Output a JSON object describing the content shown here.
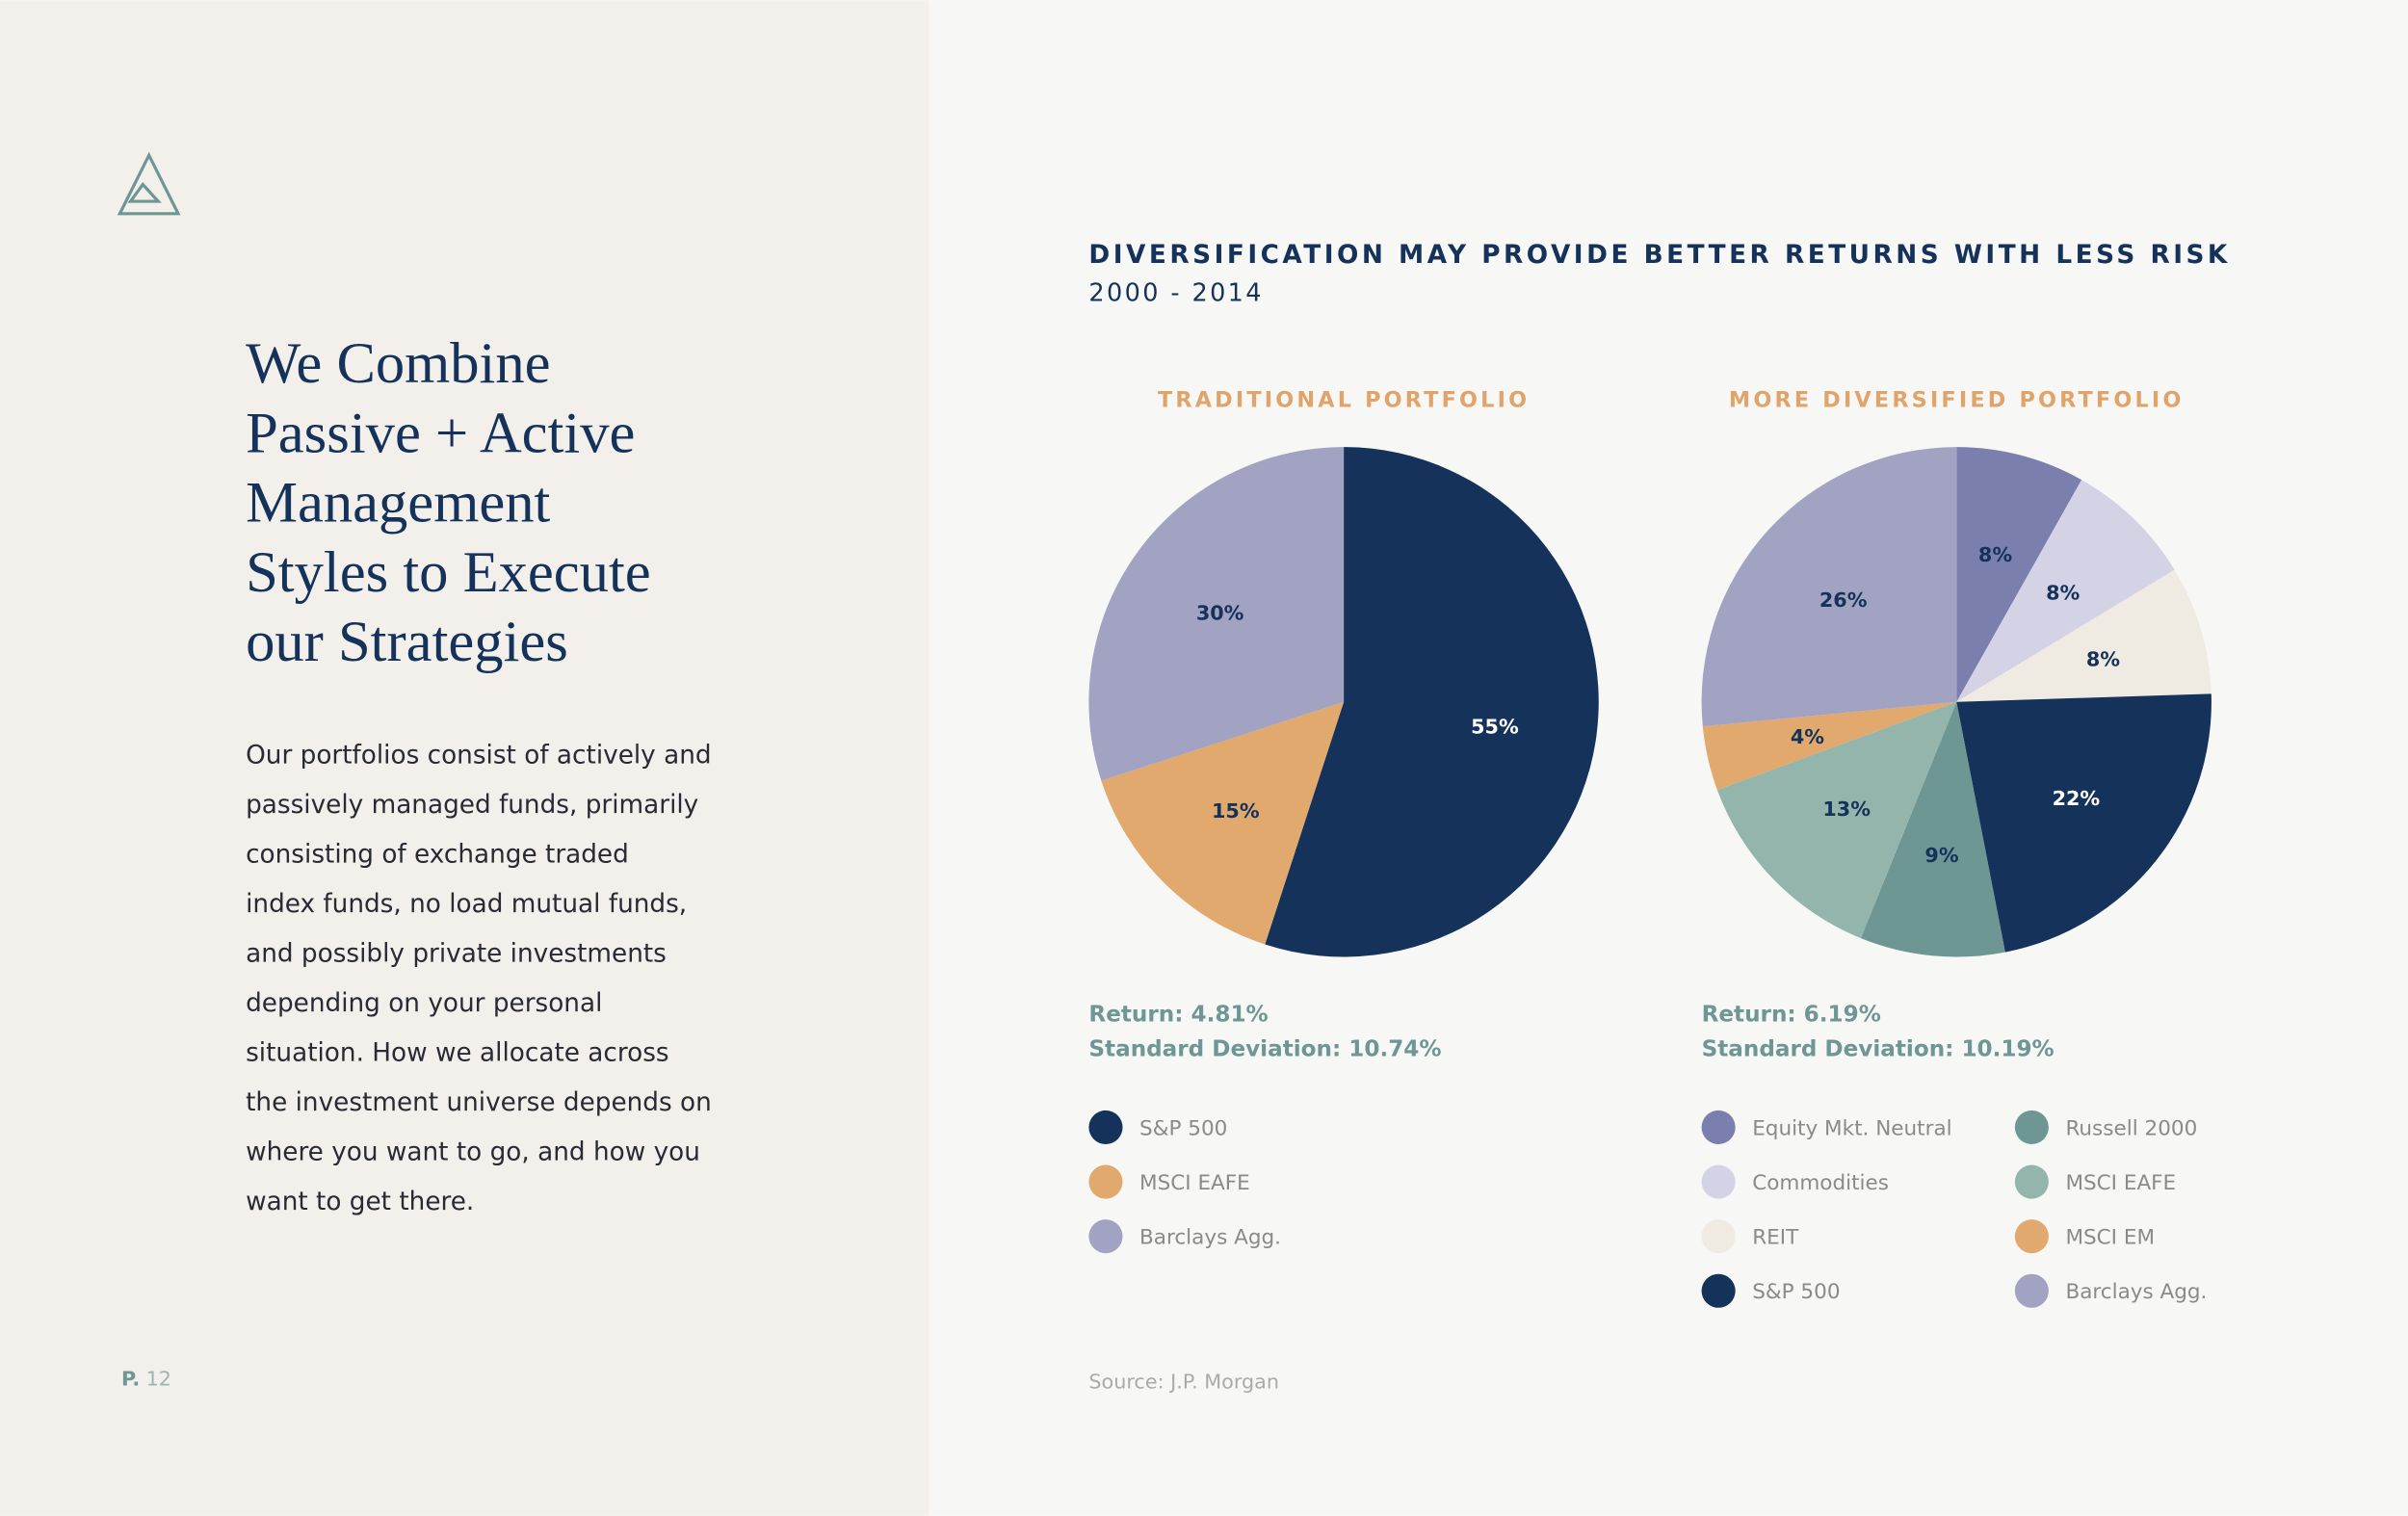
{
  "page": {
    "heading": [
      "We Combine",
      "Passive + Active",
      "Management",
      "Styles to Execute",
      "our Strategies"
    ],
    "body": [
      "Our portfolios consist of actively and",
      "passively managed funds, primarily",
      "consisting of exchange traded",
      "index funds, no load mutual funds,",
      "and possibly private investments",
      "depending on your personal",
      "situation. How we allocate across",
      "the investment universe depends on",
      "where you want to go, and how you",
      "want to get there."
    ],
    "page_prefix": "P.",
    "page_number": "12",
    "title": "DIVERSIFICATION MAY PROVIDE BETTER RETURNS WITH LESS RISK",
    "subtitle": "2000 - 2014",
    "source": "Source: J.P. Morgan"
  },
  "chart_data": [
    {
      "type": "pie",
      "title": "TRADITIONAL PORTFOLIO",
      "categories": [
        "S&P 500",
        "MSCI EAFE",
        "Barclays Agg."
      ],
      "values": [
        55,
        15,
        30
      ],
      "value_labels": [
        "55%",
        "15%",
        "30%"
      ],
      "colors": [
        "#14325a",
        "#e2a96e",
        "#a2a2c3"
      ],
      "annotations": [
        "Return: 4.81%",
        "Standard Deviation: 10.74%"
      ]
    },
    {
      "type": "pie",
      "title": "MORE DIVERSIFIED PORTFOLIO",
      "categories": [
        "Equity Mkt. Neutral",
        "Commodities",
        "REIT",
        "S&P 500",
        "Russell 2000",
        "MSCI EAFE",
        "MSCI EM",
        "Barclays Agg."
      ],
      "values": [
        8,
        8,
        8,
        22,
        9,
        13,
        4,
        26
      ],
      "value_labels": [
        "8%",
        "8%",
        "8%",
        "22%",
        "9%",
        "13%",
        "4%",
        "26%"
      ],
      "colors": [
        "#7b7fad",
        "#d4d3e6",
        "#f0ebe2",
        "#14325a",
        "#6e9794",
        "#94b5ab",
        "#e2a96e",
        "#a2a2c3"
      ],
      "annotations": [
        "Return: 6.19%",
        "Standard Deviation: 10.19%"
      ]
    }
  ]
}
